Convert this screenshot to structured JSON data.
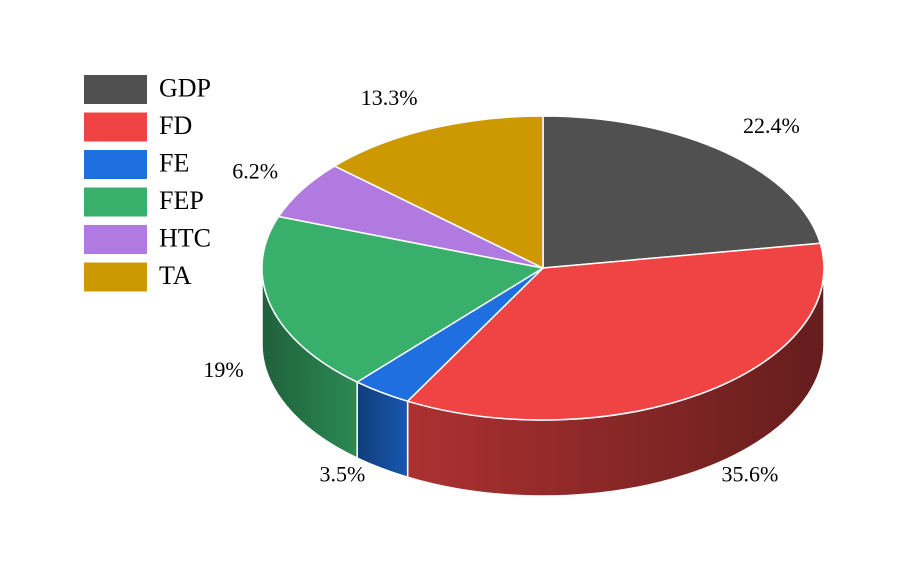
{
  "chart_data": {
    "type": "pie",
    "style": "3d",
    "legend_position": "top-left",
    "slices": [
      {
        "label": "GDP",
        "value": 22.4,
        "value_label": "22.4%",
        "color": "#505050"
      },
      {
        "label": "FD",
        "value": 35.6,
        "value_label": "35.6%",
        "color": "#f04444"
      },
      {
        "label": "FE",
        "value": 3.5,
        "value_label": "3.5%",
        "color": "#1f6fe0"
      },
      {
        "label": "FEP",
        "value": 19,
        "value_label": "19%",
        "color": "#38b06c"
      },
      {
        "label": "HTC",
        "value": 6.2,
        "value_label": "6.2%",
        "color": "#b07ae0"
      },
      {
        "label": "TA",
        "value": 13.3,
        "value_label": "13.3%",
        "color": "#cc9900"
      }
    ]
  }
}
